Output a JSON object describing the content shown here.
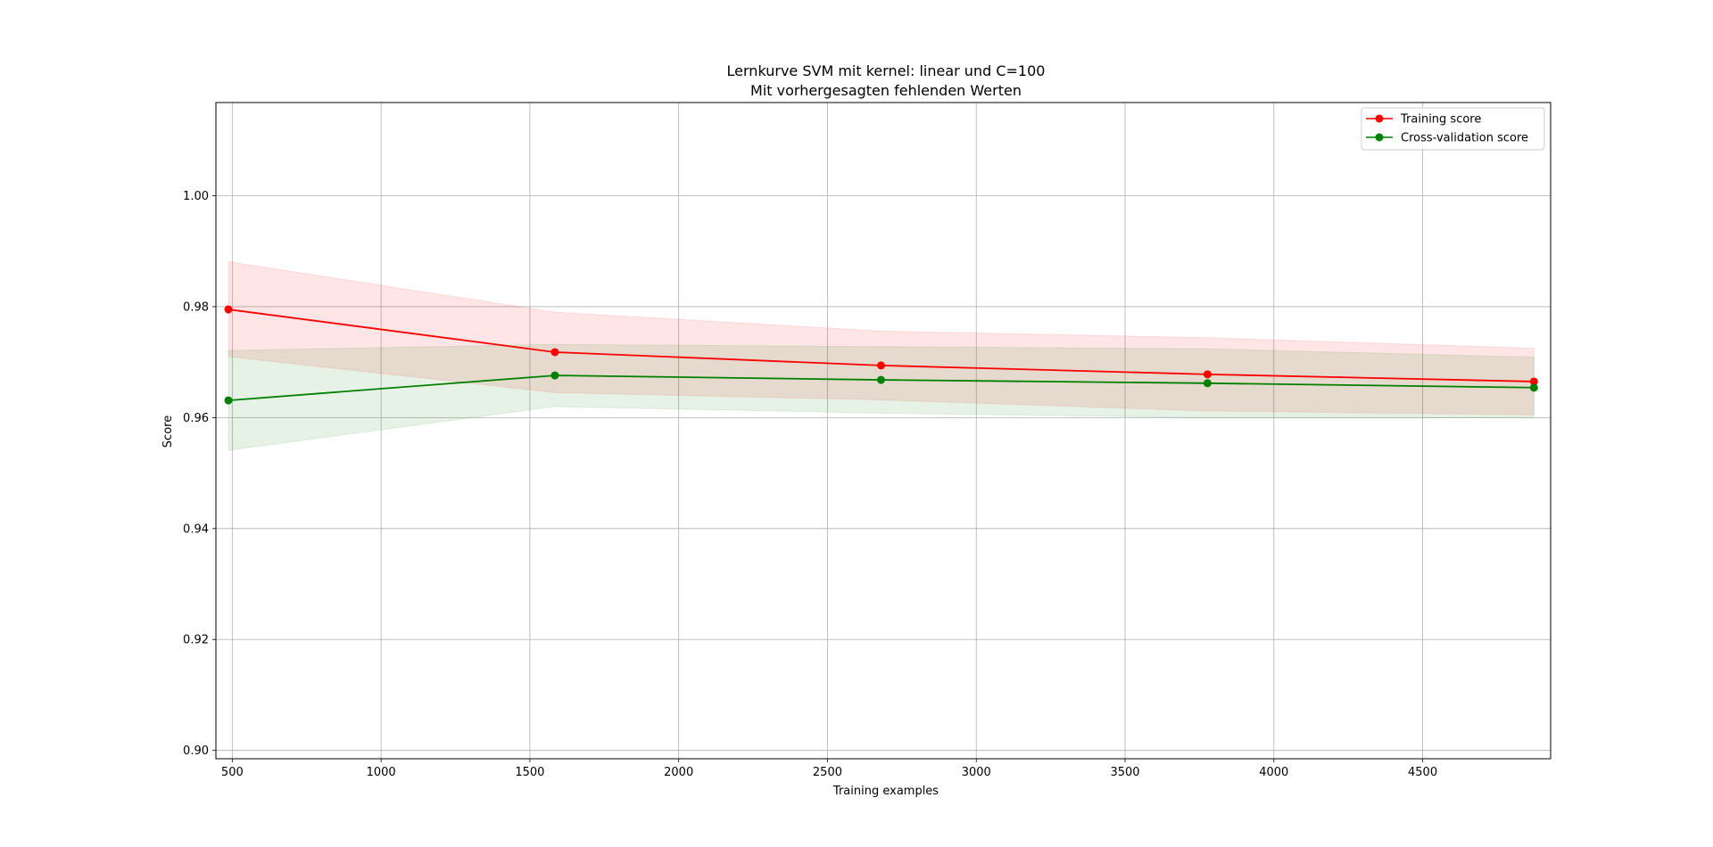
{
  "chart_data": {
    "type": "line",
    "title": "Lernkurve SVM mit kernel: linear und C=100",
    "subtitle": "Mit vorhergesagten fehlenden Werten",
    "xlabel": "Training examples",
    "ylabel": "Score",
    "xlim": [
      445,
      4930
    ],
    "ylim": [
      0.8985,
      1.0168
    ],
    "xticks": [
      500,
      1000,
      1500,
      2000,
      2500,
      3000,
      3500,
      4000,
      4500
    ],
    "xtick_labels": [
      "500",
      "1000",
      "1500",
      "2000",
      "2500",
      "3000",
      "3500",
      "4000",
      "4500"
    ],
    "yticks": [
      0.9,
      0.92,
      0.94,
      0.96,
      0.98,
      1.0
    ],
    "ytick_labels": [
      "0.90",
      "0.92",
      "0.94",
      "0.96",
      "0.98",
      "1.00"
    ],
    "grid": true,
    "legend_position": "top-right",
    "x": [
      487,
      1584,
      2680,
      3777,
      4874
    ],
    "series": [
      {
        "name": "Training score",
        "color": "#ff0000",
        "band_color": "#ff0000",
        "values": [
          0.9795,
          0.9718,
          0.9694,
          0.9678,
          0.9665
        ],
        "lower": [
          0.971,
          0.9645,
          0.9632,
          0.9612,
          0.9605
        ],
        "upper": [
          0.9881,
          0.979,
          0.9756,
          0.9744,
          0.9725
        ]
      },
      {
        "name": "Cross-validation score",
        "color": "#008000",
        "band_color": "#008000",
        "values": [
          0.9631,
          0.9676,
          0.9668,
          0.9662,
          0.9654
        ],
        "lower": [
          0.9541,
          0.962,
          0.9608,
          0.96,
          0.96
        ],
        "upper": [
          0.9721,
          0.9732,
          0.9728,
          0.9724,
          0.9709
        ]
      }
    ]
  }
}
